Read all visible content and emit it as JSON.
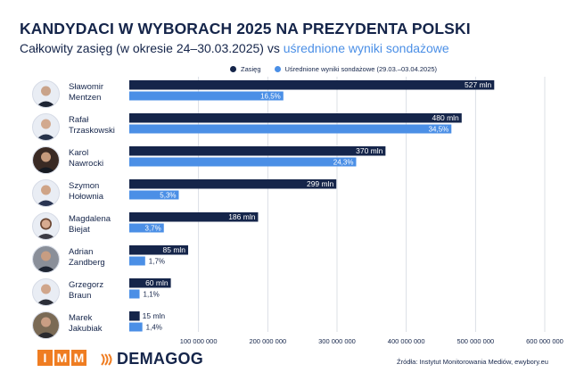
{
  "header": {
    "title": "KANDYDACI W WYBORACH 2025 NA PREZYDENTA POLSKI",
    "subtitle_main": "Całkowity zasięg (w okresie 24–30.03.2025) vs ",
    "subtitle_highlight": "uśrednione wyniki sondażowe"
  },
  "legend": {
    "reach": "Zasięg",
    "polls": "Uśrednione wyniki sondażowe (29.03.–03.04.2025)"
  },
  "candidates": [
    {
      "first": "Sławomir",
      "last": "Mentzen"
    },
    {
      "first": "Rafał",
      "last": "Trzaskowski"
    },
    {
      "first": "Karol",
      "last": "Nawrocki"
    },
    {
      "first": "Szymon",
      "last": "Hołownia"
    },
    {
      "first": "Magdalena",
      "last": "Biejat"
    },
    {
      "first": "Adrian",
      "last": "Zandberg"
    },
    {
      "first": "Grzegorz",
      "last": "Braun"
    },
    {
      "first": "Marek",
      "last": "Jakubiak"
    }
  ],
  "chart_data": {
    "type": "bar",
    "orientation": "horizontal",
    "categories": [
      "Sławomir Mentzen",
      "Rafał Trzaskowski",
      "Karol Nawrocki",
      "Szymon Hołownia",
      "Magdalena Biejat",
      "Adrian Zandberg",
      "Grzegorz Braun",
      "Marek Jakubiak"
    ],
    "series": [
      {
        "name": "Zasięg",
        "color": "#15254a",
        "values": [
          527000000,
          480000000,
          370000000,
          299000000,
          186000000,
          85000000,
          60000000,
          15000000
        ],
        "labels": [
          "527 mln",
          "480 mln",
          "370 mln",
          "299 mln",
          "186 mln",
          "85 mln",
          "60 mln",
          "15 mln"
        ]
      },
      {
        "name": "Uśrednione wyniki sondażowe (29.03.–03.04.2025)",
        "color": "#4b8fe6",
        "values": [
          16.5,
          34.5,
          24.3,
          5.3,
          3.7,
          1.7,
          1.1,
          1.4
        ],
        "labels": [
          "16,5%",
          "34,5%",
          "24,3%",
          "5,3%",
          "3,7%",
          "1,7%",
          "1,1%",
          "1,4%"
        ]
      }
    ],
    "xlim": [
      0,
      600000000
    ],
    "xticks": [
      100000000,
      200000000,
      300000000,
      400000000,
      500000000,
      600000000
    ],
    "xtick_labels": [
      "100 000 000",
      "200 000 000",
      "300 000 000",
      "400 000 000",
      "500 000 000",
      "600 000 000"
    ],
    "poll_scale_percent_per_full_axis": 44.5,
    "grid": true
  },
  "footer": {
    "imm_letters": [
      "I",
      "M",
      "M"
    ],
    "demagog": "DEMAGOG",
    "source": "Źródła: Instytut Monitorowania Mediów, ewybory.eu"
  },
  "colors": {
    "navy": "#15254a",
    "blue": "#4b8fe6",
    "orange": "#ef7d22",
    "grid": "#d3d8e0"
  }
}
